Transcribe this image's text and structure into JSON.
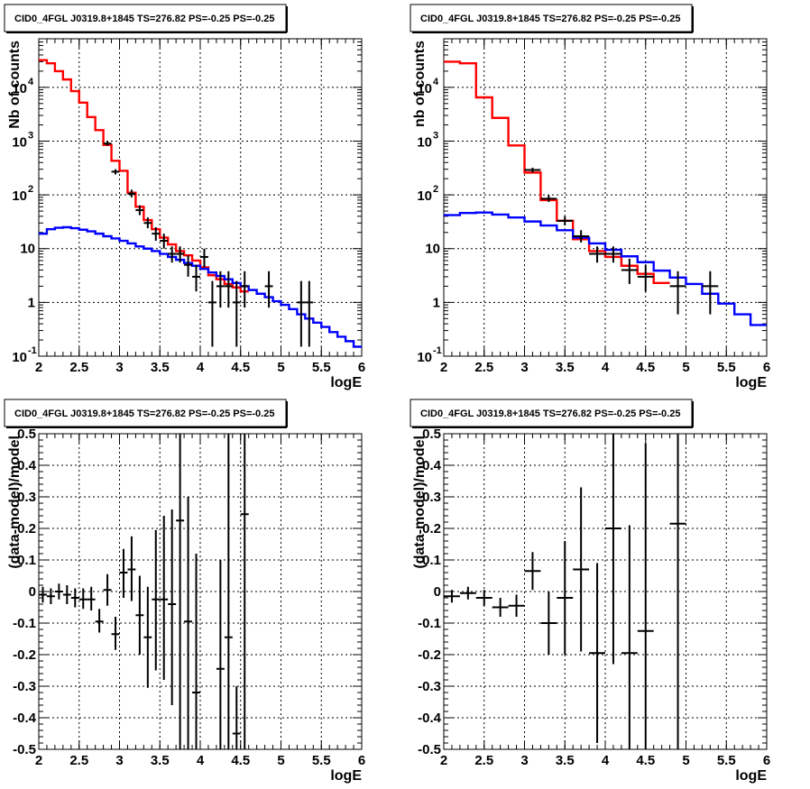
{
  "chart_data": [
    {
      "type": "line",
      "title": "CID0_4FGL J0319.8+1845 TS=276.82 PS=-0.25 PS=-0.25",
      "xlabel": "logE",
      "ylabel": "Nb of counts",
      "yscale": "log",
      "xlim": [
        2,
        6
      ],
      "ylim": [
        0.1,
        80000
      ],
      "grid": true,
      "x_ticks": [
        "2",
        "2.5",
        "3",
        "3.5",
        "4",
        "4.5",
        "5",
        "5.5",
        "6"
      ],
      "y_ticks": [
        {
          "value": 0.1,
          "base": "10",
          "exp": "-1",
          "text": ""
        },
        {
          "value": 1,
          "text": "1"
        },
        {
          "value": 10,
          "text": "10"
        },
        {
          "value": 100,
          "base": "10",
          "exp": "2",
          "text": ""
        },
        {
          "value": 1000,
          "base": "10",
          "exp": "3",
          "text": ""
        },
        {
          "value": 10000,
          "base": "10",
          "exp": "4",
          "text": ""
        }
      ],
      "series": [
        {
          "kind": "step",
          "color": "#ff0000",
          "bin_width": 0.1,
          "x": [
            2.0,
            2.1,
            2.2,
            2.3,
            2.4,
            2.5,
            2.6,
            2.7,
            2.8,
            2.9,
            3.0,
            3.1,
            3.2,
            3.3,
            3.4,
            3.5,
            3.6,
            3.7,
            3.8,
            3.9,
            4.0,
            4.1,
            4.2,
            4.3,
            4.4,
            4.5
          ],
          "values": [
            32000,
            28000,
            20000,
            14000,
            8500,
            5200,
            2800,
            1600,
            850,
            430,
            280,
            110,
            60,
            34,
            23,
            16,
            12,
            9,
            7.5,
            6,
            4.5,
            3.2,
            2.7,
            2.2,
            1.9,
            1.6
          ]
        },
        {
          "kind": "step",
          "color": "#0000ff",
          "bin_width": 0.1,
          "x": [
            2.0,
            2.1,
            2.2,
            2.3,
            2.4,
            2.5,
            2.6,
            2.7,
            2.8,
            2.9,
            3.0,
            3.1,
            3.2,
            3.3,
            3.4,
            3.5,
            3.6,
            3.7,
            3.8,
            3.9,
            4.0,
            4.1,
            4.2,
            4.3,
            4.4,
            4.5,
            4.6,
            4.7,
            4.8,
            4.9,
            5.0,
            5.1,
            5.2,
            5.3,
            5.4,
            5.5,
            5.6,
            5.7,
            5.8,
            5.9
          ],
          "values": [
            19,
            23,
            24.5,
            25,
            24,
            22.5,
            21,
            19,
            17,
            15.5,
            14,
            12.5,
            11,
            10,
            9,
            8,
            7,
            6.2,
            5.4,
            4.8,
            4.2,
            3.6,
            3.1,
            2.7,
            2.3,
            2.0,
            1.7,
            1.45,
            1.25,
            1.05,
            0.9,
            0.75,
            0.6,
            0.5,
            0.42,
            0.35,
            0.28,
            0.23,
            0.19,
            0.15
          ]
        },
        {
          "kind": "points",
          "color": "#000000",
          "x_err": 0.05,
          "points": [
            {
              "x": 2.85,
              "y": 900,
              "lo": 820,
              "hi": 980
            },
            {
              "x": 2.95,
              "y": 270,
              "lo": 240,
              "hi": 300
            },
            {
              "x": 3.15,
              "y": 105,
              "lo": 90,
              "hi": 125
            },
            {
              "x": 3.25,
              "y": 52,
              "lo": 42,
              "hi": 64
            },
            {
              "x": 3.35,
              "y": 30,
              "lo": 24,
              "hi": 38
            },
            {
              "x": 3.45,
              "y": 19,
              "lo": 14,
              "hi": 25
            },
            {
              "x": 3.55,
              "y": 14,
              "lo": 10,
              "hi": 19
            },
            {
              "x": 3.65,
              "y": 8,
              "lo": 5.5,
              "hi": 11
            },
            {
              "x": 3.75,
              "y": 8,
              "lo": 5.5,
              "hi": 11
            },
            {
              "x": 3.85,
              "y": 5,
              "lo": 3,
              "hi": 7.5
            },
            {
              "x": 3.95,
              "y": 3,
              "lo": 1.6,
              "hi": 5
            },
            {
              "x": 4.05,
              "y": 7,
              "lo": 4.5,
              "hi": 10
            },
            {
              "x": 4.15,
              "y": 1,
              "lo": 0.15,
              "hi": 2.5
            },
            {
              "x": 4.25,
              "y": 2,
              "lo": 0.8,
              "hi": 3.8
            },
            {
              "x": 4.35,
              "y": 2,
              "lo": 0.8,
              "hi": 3.8
            },
            {
              "x": 4.45,
              "y": 1,
              "lo": 0.15,
              "hi": 2.5
            },
            {
              "x": 4.55,
              "y": 2,
              "lo": 0.8,
              "hi": 3.8
            },
            {
              "x": 4.85,
              "y": 2,
              "lo": 0.8,
              "hi": 3.8
            },
            {
              "x": 5.25,
              "y": 1,
              "lo": 0.15,
              "hi": 2.5
            },
            {
              "x": 5.35,
              "y": 1,
              "lo": 0.15,
              "hi": 2.5
            }
          ]
        }
      ]
    },
    {
      "type": "line",
      "title": "CID0_4FGL J0319.8+1845 TS=276.82 PS=-0.25 PS=-0.25",
      "xlabel": "logE",
      "ylabel": "nb of counts",
      "yscale": "log",
      "xlim": [
        2,
        6
      ],
      "ylim": [
        0.1,
        80000
      ],
      "grid": true,
      "x_ticks": [
        "2",
        "2.5",
        "3",
        "3.5",
        "4",
        "4.5",
        "5",
        "5.5",
        "6"
      ],
      "y_ticks": [
        {
          "value": 0.1,
          "base": "10",
          "exp": "-1",
          "text": ""
        },
        {
          "value": 1,
          "text": "1"
        },
        {
          "value": 10,
          "text": "10"
        },
        {
          "value": 100,
          "base": "10",
          "exp": "2",
          "text": ""
        },
        {
          "value": 1000,
          "base": "10",
          "exp": "3",
          "text": ""
        },
        {
          "value": 10000,
          "base": "10",
          "exp": "4",
          "text": ""
        }
      ],
      "series": [
        {
          "kind": "step",
          "color": "#ff0000",
          "bin_width": 0.2,
          "x": [
            2.0,
            2.2,
            2.4,
            2.6,
            2.8,
            3.0,
            3.2,
            3.4,
            3.6,
            3.8,
            4.0,
            4.2,
            4.4,
            4.6
          ],
          "values": [
            30000,
            28000,
            6500,
            2700,
            830,
            260,
            80,
            33,
            15,
            9,
            7,
            4.8,
            3.4,
            2.3
          ]
        },
        {
          "kind": "step",
          "color": "#0000ff",
          "bin_width": 0.2,
          "x": [
            2.0,
            2.2,
            2.4,
            2.6,
            2.8,
            3.0,
            3.2,
            3.4,
            3.6,
            3.8,
            4.0,
            4.2,
            4.4,
            4.6,
            4.8,
            5.0,
            5.2,
            5.4,
            5.6,
            5.8
          ],
          "values": [
            42,
            46,
            47,
            43,
            38,
            32,
            27,
            22,
            16,
            12.5,
            9.5,
            7.2,
            5.6,
            3.9,
            2.9,
            2.2,
            1.45,
            0.95,
            0.6,
            0.38
          ]
        },
        {
          "kind": "points",
          "color": "#000000",
          "x_err": 0.1,
          "points": [
            {
              "x": 3.1,
              "y": 290,
              "lo": 260,
              "hi": 320
            },
            {
              "x": 3.3,
              "y": 85,
              "lo": 74,
              "hi": 98
            },
            {
              "x": 3.5,
              "y": 33,
              "lo": 27,
              "hi": 40
            },
            {
              "x": 3.7,
              "y": 17,
              "lo": 13,
              "hi": 22
            },
            {
              "x": 3.9,
              "y": 8,
              "lo": 5.5,
              "hi": 11
            },
            {
              "x": 4.1,
              "y": 8,
              "lo": 5.5,
              "hi": 11
            },
            {
              "x": 4.3,
              "y": 4,
              "lo": 2.2,
              "hi": 6.5
            },
            {
              "x": 4.5,
              "y": 3,
              "lo": 1.6,
              "hi": 5
            },
            {
              "x": 4.9,
              "y": 2,
              "lo": 0.6,
              "hi": 3.8
            },
            {
              "x": 5.3,
              "y": 2,
              "lo": 0.6,
              "hi": 3.8
            }
          ]
        }
      ]
    },
    {
      "type": "scatter",
      "title": "CID0_4FGL J0319.8+1845 TS=276.82 PS=-0.25 PS=-0.25",
      "xlabel": "logE",
      "ylabel": "(data-model)/model",
      "yscale": "linear",
      "xlim": [
        2,
        6
      ],
      "ylim": [
        -0.5,
        0.5
      ],
      "grid": true,
      "x_ticks": [
        "2",
        "2.5",
        "3",
        "3.5",
        "4",
        "4.5",
        "5",
        "5.5",
        "6"
      ],
      "y_ticks": [
        "-0.5",
        "-0.4",
        "-0.3",
        "-0.2",
        "-0.1",
        "0",
        "0.1",
        "0.2",
        "0.3",
        "0.4",
        "0.5"
      ],
      "series": [
        {
          "kind": "points",
          "color": "#000000",
          "x_err": 0.05,
          "points": [
            {
              "x": 2.05,
              "y": -0.01,
              "lo": -0.035,
              "hi": 0.015
            },
            {
              "x": 2.15,
              "y": -0.015,
              "lo": -0.04,
              "hi": 0.01
            },
            {
              "x": 2.25,
              "y": 0.0,
              "lo": -0.025,
              "hi": 0.025
            },
            {
              "x": 2.35,
              "y": -0.01,
              "lo": -0.04,
              "hi": 0.02
            },
            {
              "x": 2.45,
              "y": -0.02,
              "lo": -0.05,
              "hi": 0.01
            },
            {
              "x": 2.55,
              "y": -0.025,
              "lo": -0.055,
              "hi": 0.01
            },
            {
              "x": 2.65,
              "y": -0.025,
              "lo": -0.06,
              "hi": 0.015
            },
            {
              "x": 2.75,
              "y": -0.095,
              "lo": -0.13,
              "hi": -0.055
            },
            {
              "x": 2.85,
              "y": 0.005,
              "lo": -0.045,
              "hi": 0.055
            },
            {
              "x": 2.95,
              "y": -0.135,
              "lo": -0.185,
              "hi": -0.08
            },
            {
              "x": 3.05,
              "y": 0.06,
              "lo": -0.02,
              "hi": 0.135
            },
            {
              "x": 3.15,
              "y": 0.07,
              "lo": -0.03,
              "hi": 0.175
            },
            {
              "x": 3.25,
              "y": -0.075,
              "lo": -0.2,
              "hi": 0.05
            },
            {
              "x": 3.35,
              "y": -0.145,
              "lo": -0.305,
              "hi": 0.015
            },
            {
              "x": 3.45,
              "y": -0.025,
              "lo": -0.25,
              "hi": 0.195
            },
            {
              "x": 3.55,
              "y": -0.025,
              "lo": -0.28,
              "hi": 0.24
            },
            {
              "x": 3.65,
              "y": -0.04,
              "lo": -0.36,
              "hi": 0.26
            },
            {
              "x": 3.75,
              "y": 0.225,
              "lo": -0.5,
              "hi": 0.5
            },
            {
              "x": 3.85,
              "y": -0.095,
              "lo": -0.5,
              "hi": 0.3
            },
            {
              "x": 3.95,
              "y": -0.32,
              "lo": -0.5,
              "hi": 0.12
            },
            {
              "x": 4.25,
              "y": -0.245,
              "lo": -0.5,
              "hi": 0.1
            },
            {
              "x": 4.35,
              "y": -0.145,
              "lo": -0.5,
              "hi": 0.5
            },
            {
              "x": 4.45,
              "y": -0.45,
              "lo": -0.5,
              "hi": -0.3
            },
            {
              "x": 4.55,
              "y": 0.245,
              "lo": -0.5,
              "hi": 0.5
            }
          ]
        }
      ]
    },
    {
      "type": "scatter",
      "title": "CID0_4FGL J0319.8+1845 TS=276.82 PS=-0.25 PS=-0.25",
      "xlabel": "logE",
      "ylabel": "(data-model)/model",
      "yscale": "linear",
      "xlim": [
        2,
        6
      ],
      "ylim": [
        -0.5,
        0.5
      ],
      "grid": true,
      "x_ticks": [
        "2",
        "2.5",
        "3",
        "3.5",
        "4",
        "4.5",
        "5",
        "5.5",
        "6"
      ],
      "y_ticks": [
        "-0.5",
        "-0.4",
        "-0.3",
        "-0.2",
        "-0.1",
        "0",
        "0.1",
        "0.2",
        "0.3",
        "0.4",
        "0.5"
      ],
      "series": [
        {
          "kind": "points",
          "color": "#000000",
          "x_err": 0.1,
          "points": [
            {
              "x": 2.1,
              "y": -0.015,
              "lo": -0.035,
              "hi": 0.005
            },
            {
              "x": 2.3,
              "y": -0.005,
              "lo": -0.025,
              "hi": 0.015
            },
            {
              "x": 2.5,
              "y": -0.02,
              "lo": -0.045,
              "hi": 0.005
            },
            {
              "x": 2.7,
              "y": -0.05,
              "lo": -0.08,
              "hi": -0.02
            },
            {
              "x": 2.9,
              "y": -0.045,
              "lo": -0.08,
              "hi": -0.01
            },
            {
              "x": 3.1,
              "y": 0.065,
              "lo": 0.005,
              "hi": 0.125
            },
            {
              "x": 3.3,
              "y": -0.1,
              "lo": -0.2,
              "hi": 0.0
            },
            {
              "x": 3.5,
              "y": -0.02,
              "lo": -0.2,
              "hi": 0.16
            },
            {
              "x": 3.7,
              "y": 0.07,
              "lo": -0.19,
              "hi": 0.33
            },
            {
              "x": 3.9,
              "y": -0.195,
              "lo": -0.48,
              "hi": 0.09
            },
            {
              "x": 4.1,
              "y": 0.2,
              "lo": -0.23,
              "hi": 0.5
            },
            {
              "x": 4.3,
              "y": -0.195,
              "lo": -0.5,
              "hi": 0.21
            },
            {
              "x": 4.5,
              "y": -0.125,
              "lo": -0.5,
              "hi": 0.47
            },
            {
              "x": 4.9,
              "y": 0.215,
              "lo": -0.5,
              "hi": 0.5
            }
          ]
        }
      ]
    }
  ]
}
